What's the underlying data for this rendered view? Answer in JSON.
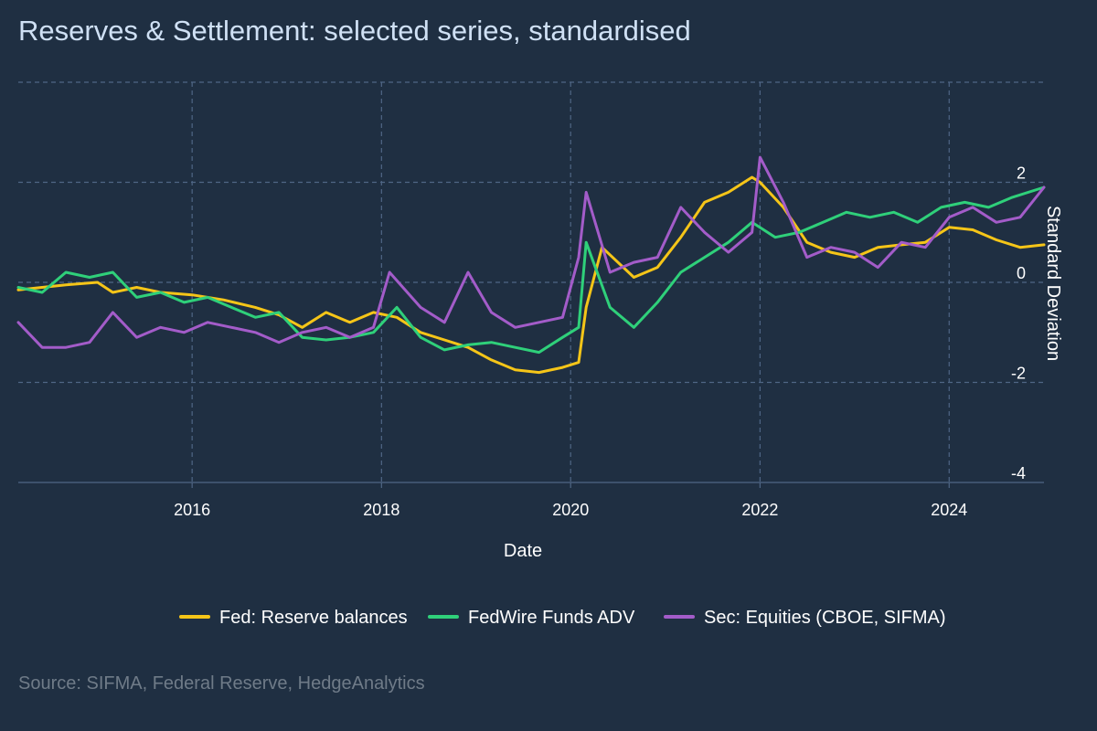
{
  "title": "Reserves & Settlement: selected series, standardised",
  "source": "Source: SIFMA, Federal Reserve, HedgeAnalytics",
  "colors": {
    "background": "#1f2f42",
    "grid": "#4f6685",
    "axis_text": "#ffffff",
    "title": "#cfe0f4",
    "source": "#6f7b88"
  },
  "chart_data": {
    "type": "line",
    "xlabel": "Date",
    "ylabel": "Standard Deviation",
    "x_ticks": [
      "2016",
      "2018",
      "2020",
      "2022",
      "2024"
    ],
    "y_ticks": [
      2,
      0,
      -2,
      -4
    ],
    "xlim": [
      "2014-03-01",
      "2025-01-01"
    ],
    "ylim": [
      -4,
      4
    ],
    "grid": true,
    "legend_position": "bottom",
    "series": [
      {
        "name": "Fed: Reserve balances",
        "color": "#f5c518",
        "points": [
          [
            "2014-03",
            -0.15
          ],
          [
            "2014-09",
            -0.05
          ],
          [
            "2015-01",
            0.0
          ],
          [
            "2015-03",
            -0.2
          ],
          [
            "2015-06",
            -0.1
          ],
          [
            "2015-09",
            -0.2
          ],
          [
            "2016-01",
            -0.25
          ],
          [
            "2016-05",
            -0.35
          ],
          [
            "2016-09",
            -0.5
          ],
          [
            "2016-12",
            -0.65
          ],
          [
            "2017-03",
            -0.9
          ],
          [
            "2017-06",
            -0.6
          ],
          [
            "2017-09",
            -0.8
          ],
          [
            "2017-12",
            -0.6
          ],
          [
            "2018-03",
            -0.7
          ],
          [
            "2018-06",
            -1.0
          ],
          [
            "2018-09",
            -1.15
          ],
          [
            "2018-12",
            -1.3
          ],
          [
            "2019-03",
            -1.55
          ],
          [
            "2019-06",
            -1.75
          ],
          [
            "2019-09",
            -1.8
          ],
          [
            "2019-12",
            -1.7
          ],
          [
            "2020-02",
            -1.6
          ],
          [
            "2020-03",
            -0.5
          ],
          [
            "2020-05",
            0.7
          ],
          [
            "2020-09",
            0.1
          ],
          [
            "2020-12",
            0.3
          ],
          [
            "2021-03",
            0.9
          ],
          [
            "2021-06",
            1.6
          ],
          [
            "2021-09",
            1.8
          ],
          [
            "2021-12",
            2.1
          ],
          [
            "2022-01",
            2.0
          ],
          [
            "2022-04",
            1.5
          ],
          [
            "2022-07",
            0.8
          ],
          [
            "2022-10",
            0.6
          ],
          [
            "2023-01",
            0.5
          ],
          [
            "2023-04",
            0.7
          ],
          [
            "2023-07",
            0.75
          ],
          [
            "2023-10",
            0.8
          ],
          [
            "2024-01",
            1.1
          ],
          [
            "2024-04",
            1.05
          ],
          [
            "2024-07",
            0.85
          ],
          [
            "2024-10",
            0.7
          ],
          [
            "2025-01",
            0.75
          ]
        ]
      },
      {
        "name": "FedWire Funds ADV",
        "color": "#2fd07a",
        "points": [
          [
            "2014-03",
            -0.1
          ],
          [
            "2014-06",
            -0.2
          ],
          [
            "2014-09",
            0.2
          ],
          [
            "2014-12",
            0.1
          ],
          [
            "2015-03",
            0.2
          ],
          [
            "2015-06",
            -0.3
          ],
          [
            "2015-09",
            -0.2
          ],
          [
            "2015-12",
            -0.4
          ],
          [
            "2016-03",
            -0.3
          ],
          [
            "2016-06",
            -0.5
          ],
          [
            "2016-09",
            -0.7
          ],
          [
            "2016-12",
            -0.6
          ],
          [
            "2017-03",
            -1.1
          ],
          [
            "2017-06",
            -1.15
          ],
          [
            "2017-09",
            -1.1
          ],
          [
            "2017-12",
            -1.0
          ],
          [
            "2018-03",
            -0.5
          ],
          [
            "2018-06",
            -1.1
          ],
          [
            "2018-09",
            -1.35
          ],
          [
            "2018-12",
            -1.25
          ],
          [
            "2019-03",
            -1.2
          ],
          [
            "2019-06",
            -1.3
          ],
          [
            "2019-09",
            -1.4
          ],
          [
            "2019-12",
            -1.1
          ],
          [
            "2020-02",
            -0.9
          ],
          [
            "2020-03",
            0.8
          ],
          [
            "2020-06",
            -0.5
          ],
          [
            "2020-09",
            -0.9
          ],
          [
            "2020-12",
            -0.4
          ],
          [
            "2021-03",
            0.2
          ],
          [
            "2021-06",
            0.5
          ],
          [
            "2021-09",
            0.8
          ],
          [
            "2021-12",
            1.2
          ],
          [
            "2022-03",
            0.9
          ],
          [
            "2022-06",
            1.0
          ],
          [
            "2022-09",
            1.2
          ],
          [
            "2022-12",
            1.4
          ],
          [
            "2023-03",
            1.3
          ],
          [
            "2023-06",
            1.4
          ],
          [
            "2023-09",
            1.2
          ],
          [
            "2023-12",
            1.5
          ],
          [
            "2024-03",
            1.6
          ],
          [
            "2024-06",
            1.5
          ],
          [
            "2024-09",
            1.7
          ],
          [
            "2025-01",
            1.9
          ]
        ]
      },
      {
        "name": "Sec: Equities (CBOE, SIFMA)",
        "color": "#a35cc9",
        "points": [
          [
            "2014-03",
            -0.8
          ],
          [
            "2014-06",
            -1.3
          ],
          [
            "2014-09",
            -1.3
          ],
          [
            "2014-12",
            -1.2
          ],
          [
            "2015-03",
            -0.6
          ],
          [
            "2015-06",
            -1.1
          ],
          [
            "2015-09",
            -0.9
          ],
          [
            "2015-12",
            -1.0
          ],
          [
            "2016-03",
            -0.8
          ],
          [
            "2016-06",
            -0.9
          ],
          [
            "2016-09",
            -1.0
          ],
          [
            "2016-12",
            -1.2
          ],
          [
            "2017-03",
            -1.0
          ],
          [
            "2017-06",
            -0.9
          ],
          [
            "2017-09",
            -1.1
          ],
          [
            "2017-12",
            -0.9
          ],
          [
            "2018-02",
            0.2
          ],
          [
            "2018-06",
            -0.5
          ],
          [
            "2018-09",
            -0.8
          ],
          [
            "2018-12",
            0.2
          ],
          [
            "2019-03",
            -0.6
          ],
          [
            "2019-06",
            -0.9
          ],
          [
            "2019-09",
            -0.8
          ],
          [
            "2019-12",
            -0.7
          ],
          [
            "2020-02",
            0.5
          ],
          [
            "2020-03",
            1.8
          ],
          [
            "2020-06",
            0.2
          ],
          [
            "2020-09",
            0.4
          ],
          [
            "2020-12",
            0.5
          ],
          [
            "2021-03",
            1.5
          ],
          [
            "2021-06",
            1.0
          ],
          [
            "2021-09",
            0.6
          ],
          [
            "2021-12",
            1.0
          ],
          [
            "2022-01",
            2.5
          ],
          [
            "2022-04",
            1.6
          ],
          [
            "2022-07",
            0.5
          ],
          [
            "2022-10",
            0.7
          ],
          [
            "2023-01",
            0.6
          ],
          [
            "2023-04",
            0.3
          ],
          [
            "2023-07",
            0.8
          ],
          [
            "2023-10",
            0.7
          ],
          [
            "2024-01",
            1.3
          ],
          [
            "2024-04",
            1.5
          ],
          [
            "2024-07",
            1.2
          ],
          [
            "2024-10",
            1.3
          ],
          [
            "2025-01",
            1.9
          ]
        ]
      }
    ]
  }
}
